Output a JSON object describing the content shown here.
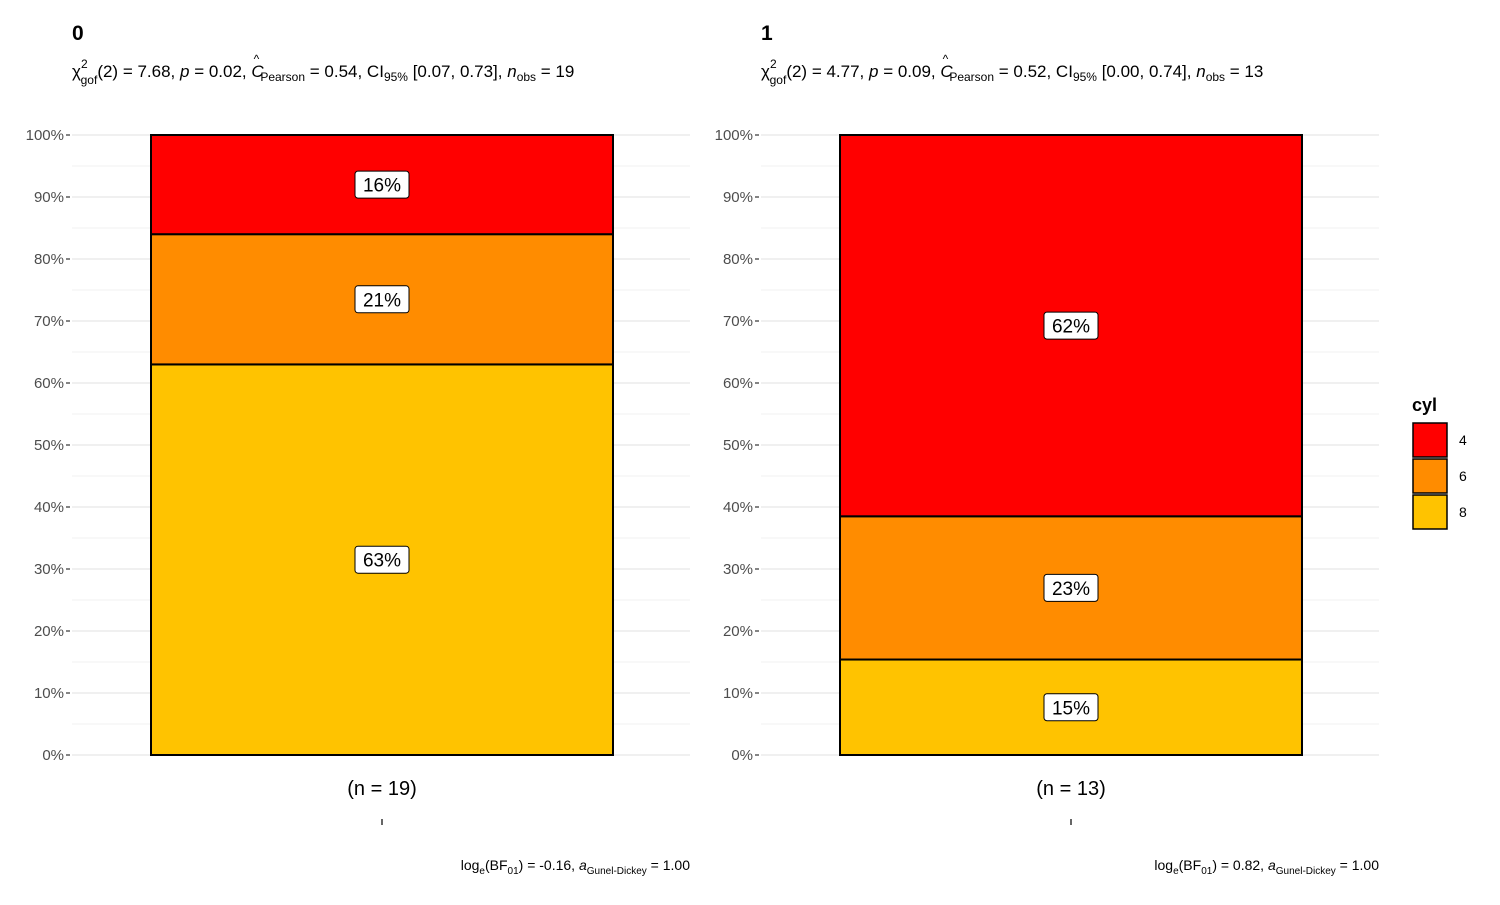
{
  "legend": {
    "title": "cyl",
    "items": [
      {
        "label": "4",
        "color": "#FF0000"
      },
      {
        "label": "6",
        "color": "#FF8C00"
      },
      {
        "label": "8",
        "color": "#FFC300"
      }
    ]
  },
  "chart_data": [
    {
      "type": "bar",
      "stacked": true,
      "title": "0",
      "subtitle": {
        "chi": "χ",
        "chi_sup": "2",
        "chi_sub": "gof",
        "stat_text": "(2) = 7.68, ",
        "p_var": "p",
        "p_text": " = 0.02, ",
        "c_var": "C",
        "c_hat": "^",
        "c_sub": "Pearson",
        "c_text": " = 0.54, CI",
        "ci_sub": "95%",
        "ci_text": " [0.07, 0.73], ",
        "n_var": "n",
        "n_sub": "obs",
        "n_text": " = 19"
      },
      "categories": [
        "(n = 19)"
      ],
      "series": [
        {
          "name": "8",
          "values": [
            63
          ],
          "label": "63%",
          "color": "#FFC300"
        },
        {
          "name": "6",
          "values": [
            21
          ],
          "label": "21%",
          "color": "#FF8C00"
        },
        {
          "name": "4",
          "values": [
            16
          ],
          "label": "16%",
          "color": "#FF0000"
        }
      ],
      "ylim": [
        0,
        100
      ],
      "yticks": [
        {
          "value": 0,
          "label": "0%"
        },
        {
          "value": 10,
          "label": "10%"
        },
        {
          "value": 20,
          "label": "20%"
        },
        {
          "value": 30,
          "label": "30%"
        },
        {
          "value": 40,
          "label": "40%"
        },
        {
          "value": 50,
          "label": "50%"
        },
        {
          "value": 60,
          "label": "60%"
        },
        {
          "value": 70,
          "label": "70%"
        },
        {
          "value": 80,
          "label": "80%"
        },
        {
          "value": 90,
          "label": "90%"
        },
        {
          "value": 100,
          "label": "100%"
        }
      ],
      "grid": true,
      "caption": {
        "log_text": "log",
        "log_sub": "e",
        "bf_text": "(BF",
        "bf_sub": "01",
        "val_text": ") = -0.16, ",
        "a_var": "a",
        "a_sub": "Gunel-Dickey",
        "a_text": " = 1.00"
      }
    },
    {
      "type": "bar",
      "stacked": true,
      "title": "1",
      "subtitle": {
        "chi": "χ",
        "chi_sup": "2",
        "chi_sub": "gof",
        "stat_text": "(2) = 4.77, ",
        "p_var": "p",
        "p_text": " = 0.09, ",
        "c_var": "C",
        "c_hat": "^",
        "c_sub": "Pearson",
        "c_text": " = 0.52, CI",
        "ci_sub": "95%",
        "ci_text": " [0.00, 0.74], ",
        "n_var": "n",
        "n_sub": "obs",
        "n_text": " = 13"
      },
      "categories": [
        "(n = 13)"
      ],
      "series": [
        {
          "name": "8",
          "values": [
            15.4
          ],
          "label": "15%",
          "color": "#FFC300"
        },
        {
          "name": "6",
          "values": [
            23.1
          ],
          "label": "23%",
          "color": "#FF8C00"
        },
        {
          "name": "4",
          "values": [
            61.5
          ],
          "label": "62%",
          "color": "#FF0000"
        }
      ],
      "ylim": [
        0,
        100
      ],
      "yticks": [
        {
          "value": 0,
          "label": "0%"
        },
        {
          "value": 10,
          "label": "10%"
        },
        {
          "value": 20,
          "label": "20%"
        },
        {
          "value": 30,
          "label": "30%"
        },
        {
          "value": 40,
          "label": "40%"
        },
        {
          "value": 50,
          "label": "50%"
        },
        {
          "value": 60,
          "label": "60%"
        },
        {
          "value": 70,
          "label": "70%"
        },
        {
          "value": 80,
          "label": "80%"
        },
        {
          "value": 90,
          "label": "90%"
        },
        {
          "value": 100,
          "label": "100%"
        }
      ],
      "grid": true,
      "caption": {
        "log_text": "log",
        "log_sub": "e",
        "bf_text": "(BF",
        "bf_sub": "01",
        "val_text": ") = 0.82, ",
        "a_var": "a",
        "a_sub": "Gunel-Dickey",
        "a_text": " = 1.00"
      }
    }
  ]
}
